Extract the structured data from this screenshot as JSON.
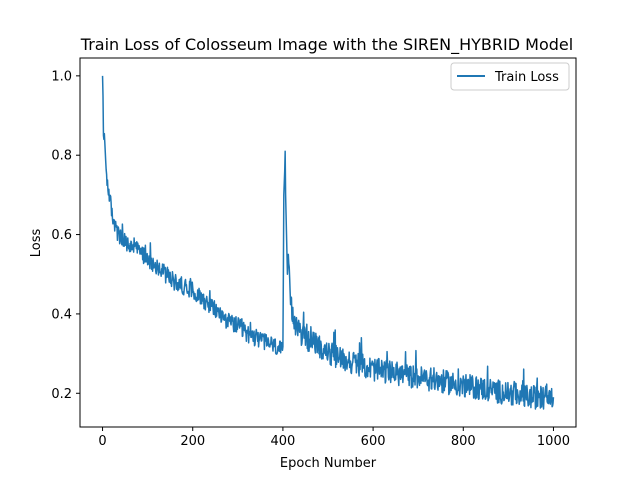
{
  "chart_data": {
    "type": "line",
    "title": "Train Loss of Colosseum Image with the SIREN_HYBRID Model",
    "xlabel": "Epoch Number",
    "ylabel": "Loss",
    "xlim": [
      -50,
      1050
    ],
    "ylim": [
      0.115,
      1.045
    ],
    "xticks": [
      0,
      200,
      400,
      600,
      800,
      1000
    ],
    "yticks": [
      0.2,
      0.4,
      0.6,
      0.8,
      1.0
    ],
    "xtick_labels": [
      "0",
      "200",
      "400",
      "600",
      "800",
      "1000"
    ],
    "ytick_labels": [
      "0.2",
      "0.4",
      "0.6",
      "0.8",
      "1.0"
    ],
    "legend": {
      "position": "top-right",
      "entries": [
        "Train Loss"
      ]
    },
    "grid": false,
    "colors": {
      "line": "#1f77b4"
    },
    "series": [
      {
        "name": "Train Loss",
        "x": [
          0,
          1,
          2,
          3,
          5,
          7,
          10,
          15,
          20,
          30,
          40,
          50,
          60,
          70,
          80,
          90,
          100,
          120,
          140,
          160,
          180,
          200,
          220,
          240,
          260,
          280,
          300,
          320,
          340,
          360,
          380,
          395,
          400,
          402,
          404,
          405,
          406,
          408,
          410,
          412,
          415,
          420,
          430,
          440,
          460,
          480,
          500,
          550,
          600,
          650,
          700,
          750,
          800,
          850,
          900,
          950,
          1000
        ],
        "y": [
          1.0,
          0.95,
          0.85,
          0.84,
          0.83,
          0.78,
          0.74,
          0.7,
          0.66,
          0.61,
          0.59,
          0.58,
          0.57,
          0.57,
          0.56,
          0.55,
          0.54,
          0.52,
          0.5,
          0.48,
          0.47,
          0.46,
          0.44,
          0.42,
          0.4,
          0.38,
          0.37,
          0.35,
          0.34,
          0.33,
          0.32,
          0.31,
          0.3,
          0.7,
          0.76,
          0.81,
          0.7,
          0.6,
          0.5,
          0.55,
          0.46,
          0.4,
          0.37,
          0.35,
          0.33,
          0.32,
          0.3,
          0.28,
          0.26,
          0.25,
          0.24,
          0.23,
          0.22,
          0.21,
          0.2,
          0.19,
          0.19
        ]
      }
    ]
  }
}
